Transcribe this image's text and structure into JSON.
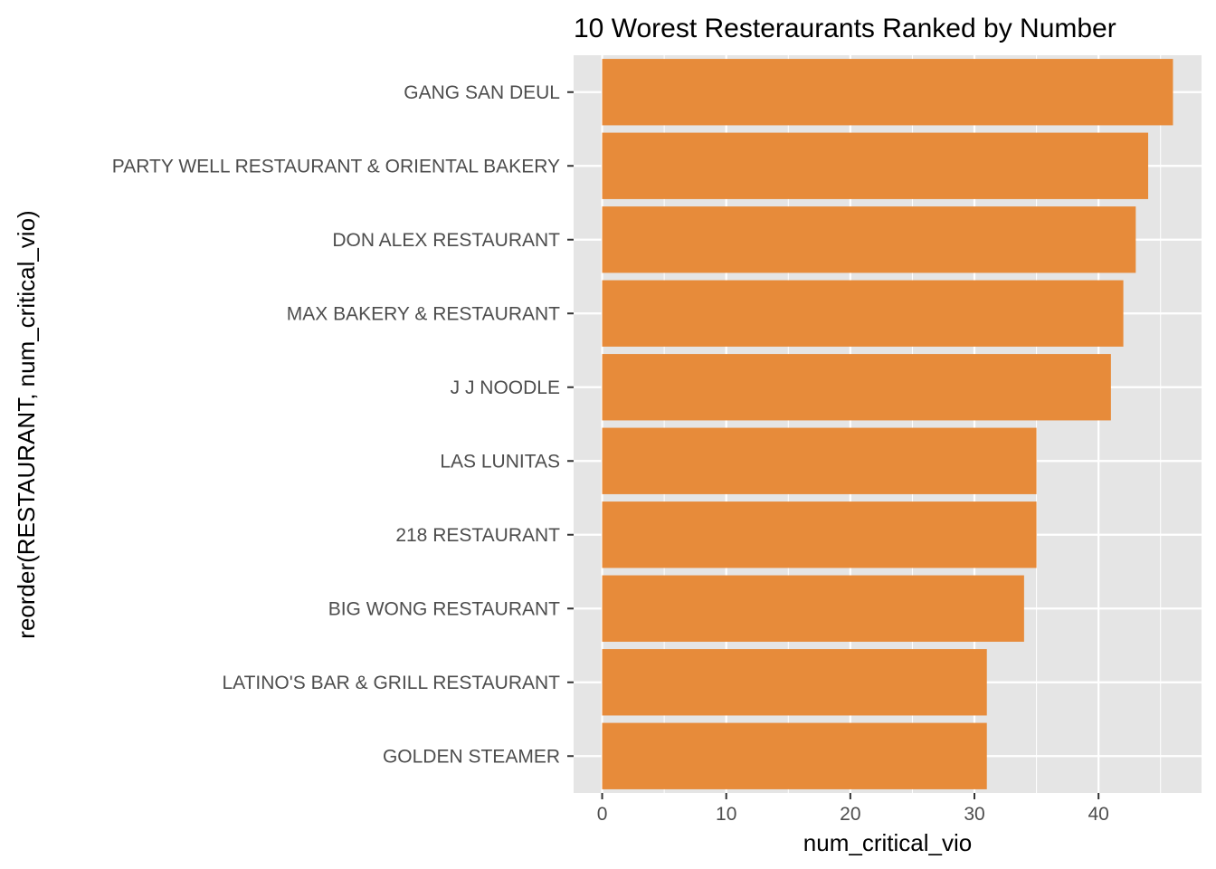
{
  "chart_data": {
    "type": "bar",
    "orientation": "horizontal",
    "title": "10 Worest Resteraurants Ranked by Number",
    "xlabel": "num_critical_vio",
    "ylabel": "reorder(RESTAURANT, num_critical_vio)",
    "categories": [
      "GANG SAN DEUL",
      "PARTY WELL RESTAURANT & ORIENTAL BAKERY",
      "DON ALEX RESTAURANT",
      "MAX BAKERY & RESTAURANT",
      "J J NOODLE",
      "LAS LUNITAS",
      "218 RESTAURANT",
      "BIG WONG RESTAURANT",
      "LATINO'S BAR & GRILL RESTAURANT",
      "GOLDEN STEAMER"
    ],
    "values": [
      46,
      44,
      43,
      42,
      41,
      35,
      35,
      34,
      31,
      31
    ],
    "x_ticks": [
      0,
      10,
      20,
      30,
      40
    ],
    "xlim": [
      -2.3,
      48.3
    ],
    "grid": true,
    "bar_color": "#e78b3a",
    "panel_background": "#e5e5e5",
    "grid_color": "#ffffff"
  }
}
